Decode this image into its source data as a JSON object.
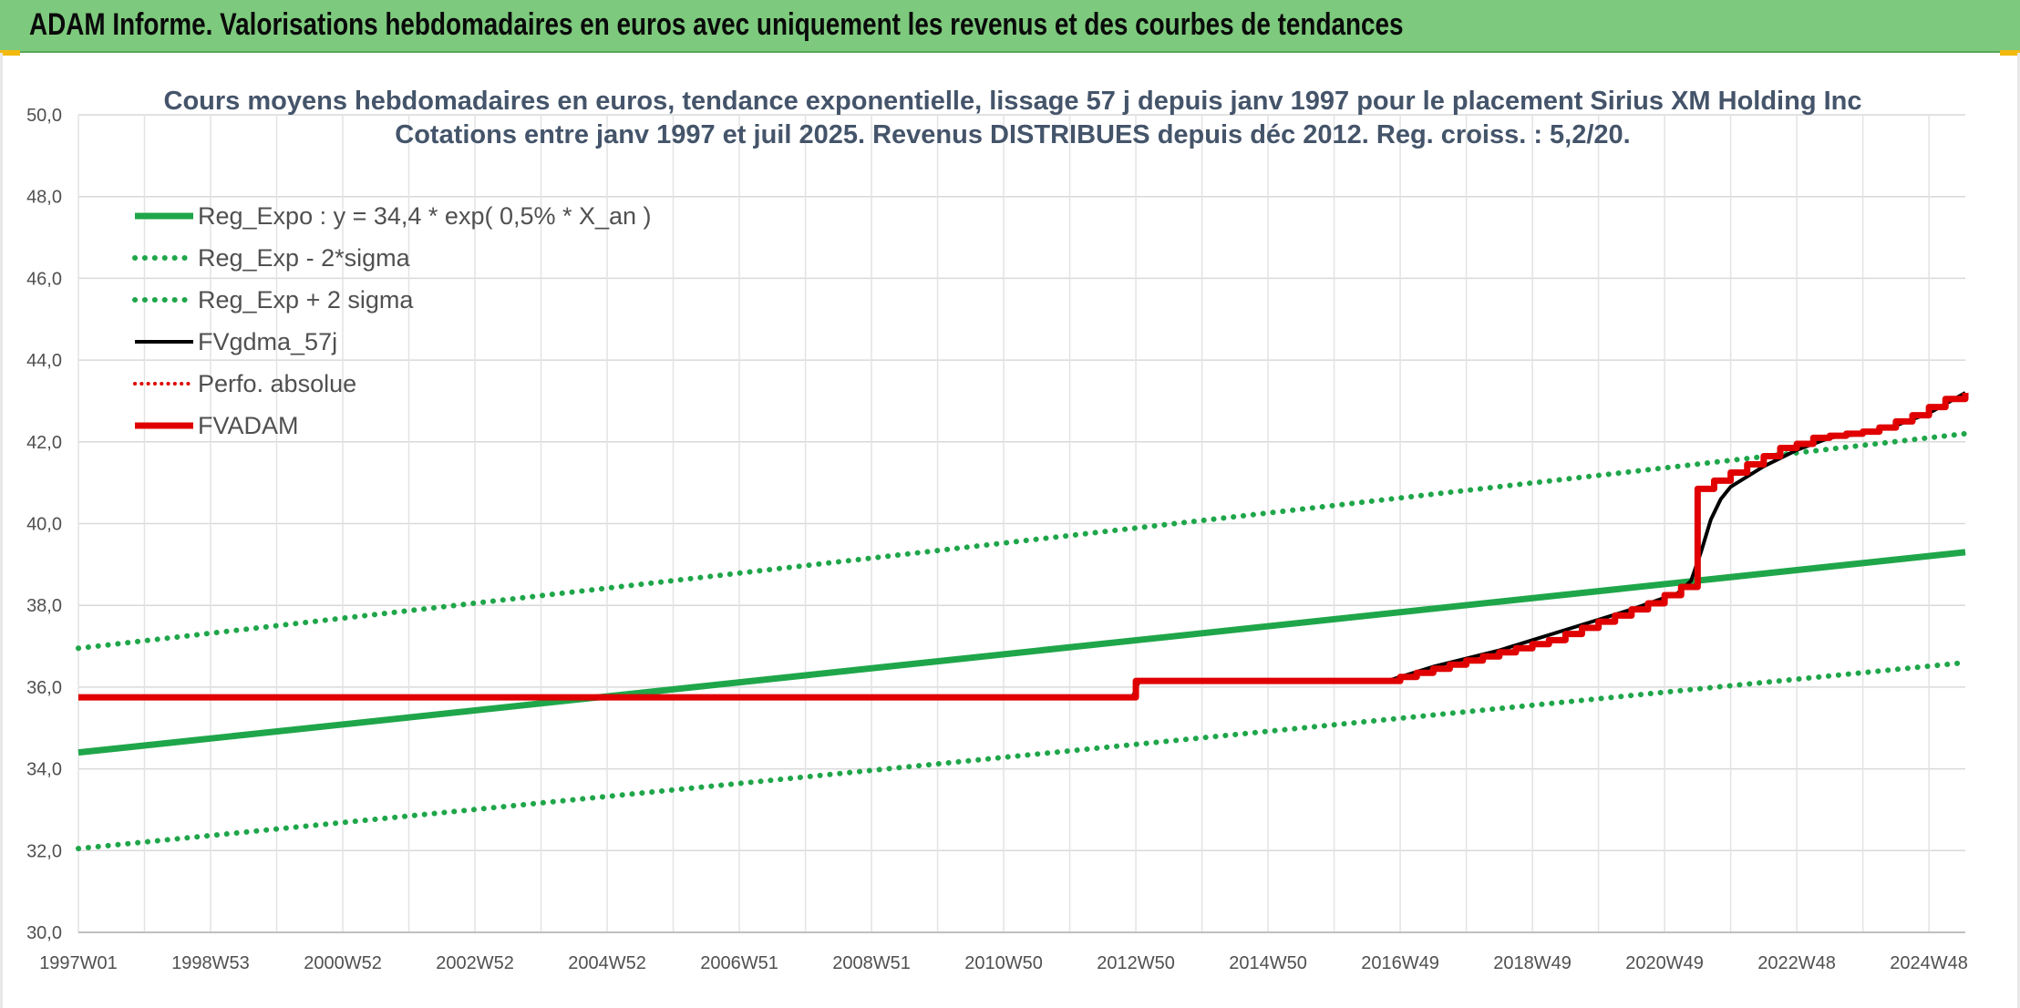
{
  "banner": {
    "title": "ADAM Informe. Valorisations hebdomadaires en euros avec uniquement les revenus et des courbes de tendances"
  },
  "chart_data": {
    "type": "line",
    "title": "Cours moyens hebdomadaires en euros, tendance exponentielle, lissage 57 j depuis janv 1997 pour le placement Sirius XM Holding Inc",
    "subtitle": "Cotations entre janv 1997 et juil 2025. Revenus DISTRIBUES depuis déc 2012. Reg. croiss. : 5,2/20.",
    "xlabel": "",
    "ylabel": "",
    "x_range": [
      1997.0,
      2025.55
    ],
    "ylim": [
      30,
      50
    ],
    "y_ticks": [
      "30,0",
      "32,0",
      "34,0",
      "36,0",
      "38,0",
      "40,0",
      "42,0",
      "44,0",
      "46,0",
      "48,0",
      "50,0"
    ],
    "x_ticks": [
      {
        "label": "1997W01",
        "x": 1997.0
      },
      {
        "label": "1998W53",
        "x": 1999.0
      },
      {
        "label": "2000W52",
        "x": 2001.0
      },
      {
        "label": "2002W52",
        "x": 2003.0
      },
      {
        "label": "2004W52",
        "x": 2005.0
      },
      {
        "label": "2006W51",
        "x": 2007.0
      },
      {
        "label": "2008W51",
        "x": 2009.0
      },
      {
        "label": "2010W50",
        "x": 2011.0
      },
      {
        "label": "2012W50",
        "x": 2013.0
      },
      {
        "label": "2014W50",
        "x": 2015.0
      },
      {
        "label": "2016W49",
        "x": 2017.0
      },
      {
        "label": "2018W49",
        "x": 2019.0
      },
      {
        "label": "2020W49",
        "x": 2021.0
      },
      {
        "label": "2022W48",
        "x": 2023.0
      },
      {
        "label": "2024W48",
        "x": 2025.0
      }
    ],
    "grid": true,
    "legend_placement": "top-left",
    "series": [
      {
        "name": "Reg_Expo : y = 34,4 * exp( 0,5% *  X_an )",
        "style": "solid",
        "color": "#1fa64a",
        "width": 7,
        "x": [
          1997.0,
          2025.55
        ],
        "y": [
          34.4,
          39.3
        ]
      },
      {
        "name": "Reg_Exp - 2*sigma",
        "style": "dotted",
        "color": "#1fa64a",
        "width": 6,
        "x": [
          1997.0,
          2025.55
        ],
        "y": [
          32.05,
          36.6
        ]
      },
      {
        "name": "Reg_Exp + 2 sigma",
        "style": "dotted",
        "color": "#1fa64a",
        "width": 6,
        "x": [
          1997.0,
          2025.55
        ],
        "y": [
          36.95,
          42.2
        ]
      },
      {
        "name": "FVgdma_57j",
        "style": "solid",
        "color": "#000000",
        "width": 4,
        "x": [
          1997.0,
          2012.95,
          2013.0,
          2013.05,
          2016.8,
          2017.5,
          2018.5,
          2019.5,
          2020.5,
          2021.2,
          2021.4,
          2021.55,
          2021.7,
          2021.85,
          2022.0,
          2022.5,
          2023.0,
          2023.5,
          2024.0,
          2024.5,
          2025.0,
          2025.55
        ],
        "y": [
          35.75,
          35.75,
          35.95,
          36.15,
          36.15,
          36.5,
          36.9,
          37.4,
          37.9,
          38.3,
          38.6,
          39.3,
          40.1,
          40.6,
          40.9,
          41.4,
          41.8,
          42.1,
          42.2,
          42.4,
          42.7,
          43.2
        ]
      },
      {
        "name": "Perfo. absolue",
        "style": "dotted",
        "color": "#e00000",
        "width": 4,
        "x": [],
        "y": []
      },
      {
        "name": "FVADAM",
        "style": "step",
        "color": "#e00000",
        "width": 7,
        "x": [
          1997.0,
          2013.0,
          2013.0,
          2016.8,
          2017.0,
          2017.25,
          2017.5,
          2017.75,
          2018.0,
          2018.25,
          2018.5,
          2018.75,
          2019.0,
          2019.25,
          2019.5,
          2019.75,
          2020.0,
          2020.25,
          2020.5,
          2020.75,
          2021.0,
          2021.25,
          2021.5,
          2021.75,
          2022.0,
          2022.25,
          2022.5,
          2022.75,
          2023.0,
          2023.25,
          2023.5,
          2023.75,
          2024.0,
          2024.25,
          2024.5,
          2024.75,
          2025.0,
          2025.25,
          2025.55
        ],
        "y": [
          35.75,
          35.75,
          36.15,
          36.15,
          36.25,
          36.35,
          36.45,
          36.55,
          36.65,
          36.75,
          36.85,
          36.95,
          37.05,
          37.15,
          37.3,
          37.45,
          37.6,
          37.75,
          37.9,
          38.05,
          38.25,
          38.45,
          40.85,
          41.05,
          41.25,
          41.45,
          41.65,
          41.85,
          41.95,
          42.1,
          42.15,
          42.2,
          42.25,
          42.35,
          42.5,
          42.65,
          42.85,
          43.05,
          43.2
        ]
      }
    ]
  }
}
